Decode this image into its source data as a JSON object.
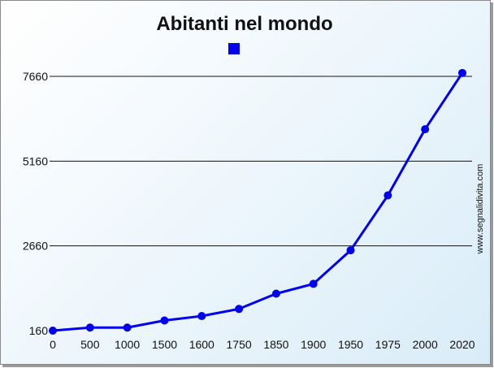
{
  "chart_data": {
    "type": "line",
    "title": "Abitanti nel mondo",
    "xlabel": "",
    "ylabel": "",
    "categories": [
      "0",
      "500",
      "1000",
      "1500",
      "1600",
      "1750",
      "1850",
      "1900",
      "1950",
      "1975",
      "2000",
      "2020"
    ],
    "series": [
      {
        "name": "",
        "color": "#0000ee",
        "values": [
          160,
          250,
          250,
          460,
          590,
          800,
          1250,
          1540,
          2530,
          4150,
          6100,
          7760
        ]
      }
    ],
    "yticks": [
      160,
      2660,
      5160,
      7660
    ],
    "ylim": [
      160,
      7660
    ],
    "grid": true,
    "legend_position": "top-center",
    "legend_marker_color": "#0000ee"
  },
  "watermark": "www.segnalidivita.com"
}
